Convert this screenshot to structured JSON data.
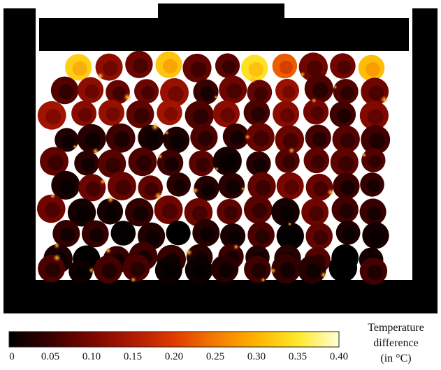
{
  "figure": {
    "colorbar": {
      "title_lines": [
        "Temperature",
        "difference",
        "(in °C)"
      ],
      "ticks": [
        "0",
        "0.05",
        "0.10",
        "0.15",
        "0.20",
        "0.25",
        "0.30",
        "0.35",
        "0.40"
      ],
      "range": [
        0,
        0.4
      ],
      "colormap": "hot",
      "colormap_stops": [
        "#000000",
        "#3a0000",
        "#7a0600",
        "#b01a00",
        "#e03a00",
        "#f57a00",
        "#ffb400",
        "#ffe82a",
        "#ffffd6"
      ]
    },
    "colors": {
      "container": "#000000",
      "background": "#ffffff"
    }
  }
}
